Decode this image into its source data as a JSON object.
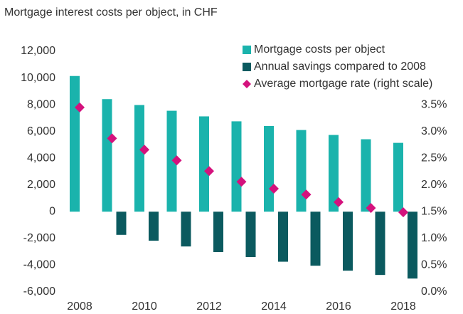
{
  "chart_data": {
    "type": "bar",
    "title": "Mortgage interest costs per object, in CHF",
    "categories": [
      "2008",
      null,
      "2010",
      null,
      "2012",
      null,
      "2014",
      null,
      "2016",
      null,
      "2018"
    ],
    "series": [
      {
        "name": "Mortgage costs per object",
        "color": "#1ab3ac",
        "values": [
          10150,
          8420,
          7980,
          7550,
          7130,
          6760,
          6410,
          6110,
          5740,
          5420,
          5150
        ]
      },
      {
        "name": "Annual savings compared to 2008",
        "color": "#0b5a5f",
        "values": [
          0,
          -1730,
          -2170,
          -2600,
          -3020,
          -3390,
          -3740,
          -4040,
          -4410,
          -4730,
          -5000
        ]
      },
      {
        "name": "Average mortgage rate (right scale)",
        "color": "#d4127d",
        "type": "scatter",
        "axis": "y2",
        "values": [
          3.45,
          2.87,
          2.66,
          2.46,
          2.26,
          2.06,
          1.93,
          1.82,
          1.68,
          1.57,
          1.49
        ]
      }
    ],
    "ylim": [
      -6000,
      12000
    ],
    "yticks": [
      {
        "value": -6000,
        "label": "-6,000"
      },
      {
        "value": -4000,
        "label": "-4,000"
      },
      {
        "value": -2000,
        "label": "-2,000"
      },
      0,
      {
        "value": 2000,
        "label": "2,000"
      },
      {
        "value": 4000,
        "label": "4,000"
      },
      {
        "value": 6000,
        "label": "6,000"
      },
      {
        "value": 8000,
        "label": "8,000"
      },
      {
        "value": 10000,
        "label": "10,000"
      },
      {
        "value": 12000,
        "label": "12,000"
      }
    ],
    "y2lim": [
      0,
      4.5
    ],
    "y2ticks": [
      {
        "value": 0,
        "label": "0.0%"
      },
      {
        "value": 0.5,
        "label": "0.5%"
      },
      {
        "value": 1,
        "label": "1.0%"
      },
      {
        "value": 1.5,
        "label": "1.5%"
      },
      {
        "value": 2,
        "label": "2.0%"
      },
      {
        "value": 2.5,
        "label": "2.5%"
      },
      {
        "value": 3,
        "label": "3.0%"
      },
      {
        "value": 3.5,
        "label": "3.5%"
      }
    ],
    "grid": false,
    "legend": "top-right"
  }
}
